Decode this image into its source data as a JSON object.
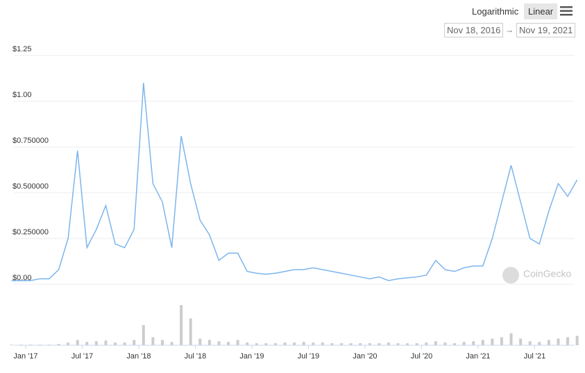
{
  "controls": {
    "scales": [
      "Logarithmic",
      "Linear"
    ],
    "active_scale": 1,
    "range_start": "Nov 18, 2016",
    "range_separator": "→",
    "range_end": "Nov 19, 2021"
  },
  "watermark": "CoinGecko",
  "chart_data": {
    "type": "line",
    "color": "#7cb5ec",
    "grid": true,
    "x": [
      "2016-11",
      "2016-12",
      "2017-01",
      "2017-02",
      "2017-03",
      "2017-04",
      "2017-05",
      "2017-06",
      "2017-07",
      "2017-08",
      "2017-09",
      "2017-10",
      "2017-11",
      "2017-12",
      "2018-01",
      "2018-02",
      "2018-03",
      "2018-04",
      "2018-05",
      "2018-06",
      "2018-07",
      "2018-08",
      "2018-09",
      "2018-10",
      "2018-11",
      "2018-12",
      "2019-01",
      "2019-02",
      "2019-03",
      "2019-04",
      "2019-05",
      "2019-06",
      "2019-07",
      "2019-08",
      "2019-09",
      "2019-10",
      "2019-11",
      "2019-12",
      "2020-01",
      "2020-02",
      "2020-03",
      "2020-04",
      "2020-05",
      "2020-06",
      "2020-07",
      "2020-08",
      "2020-09",
      "2020-10",
      "2020-11",
      "2020-12",
      "2021-01",
      "2021-02",
      "2021-03",
      "2021-04",
      "2021-05",
      "2021-06",
      "2021-07",
      "2021-08",
      "2021-09",
      "2021-10",
      "2021-11"
    ],
    "values": [
      0.02,
      0.02,
      0.02,
      0.03,
      0.03,
      0.08,
      0.25,
      0.73,
      0.2,
      0.3,
      0.43,
      0.22,
      0.2,
      0.3,
      1.1,
      0.55,
      0.45,
      0.2,
      0.81,
      0.55,
      0.35,
      0.27,
      0.13,
      0.17,
      0.17,
      0.07,
      0.06,
      0.055,
      0.06,
      0.07,
      0.08,
      0.08,
      0.09,
      0.08,
      0.07,
      0.06,
      0.05,
      0.04,
      0.03,
      0.04,
      0.02,
      0.03,
      0.035,
      0.04,
      0.05,
      0.13,
      0.08,
      0.07,
      0.09,
      0.1,
      0.1,
      0.25,
      0.45,
      0.65,
      0.45,
      0.25,
      0.22,
      0.4,
      0.55,
      0.48,
      0.57
    ],
    "volume": {
      "color": "#cccccc",
      "values": [
        1,
        1,
        1,
        1,
        1,
        2,
        4,
        8,
        5,
        6,
        7,
        4,
        4,
        8,
        30,
        12,
        8,
        5,
        60,
        40,
        10,
        8,
        6,
        5,
        8,
        4,
        3,
        3,
        3,
        4,
        4,
        5,
        4,
        4,
        3,
        3,
        3,
        3,
        3,
        3,
        4,
        3,
        3,
        3,
        4,
        6,
        4,
        3,
        5,
        6,
        8,
        10,
        12,
        18,
        10,
        6,
        5,
        8,
        10,
        12,
        14
      ]
    },
    "ylim": [
      0,
      1.25
    ],
    "yticks": [
      {
        "value": 0,
        "label": "$0.00"
      },
      {
        "value": 0.25,
        "label": "$0.250000"
      },
      {
        "value": 0.5,
        "label": "$0.500000"
      },
      {
        "value": 0.75,
        "label": "$0.750000"
      },
      {
        "value": 1,
        "label": "$1.00"
      },
      {
        "value": 1.25,
        "label": "$1.25"
      }
    ],
    "xticks": [
      {
        "value": "2017-01",
        "label": "Jan '17"
      },
      {
        "value": "2017-07",
        "label": "Jul '17"
      },
      {
        "value": "2018-01",
        "label": "Jan '18"
      },
      {
        "value": "2018-07",
        "label": "Jul '18"
      },
      {
        "value": "2019-01",
        "label": "Jan '19"
      },
      {
        "value": "2019-07",
        "label": "Jul '19"
      },
      {
        "value": "2020-01",
        "label": "Jan '20"
      },
      {
        "value": "2020-07",
        "label": "Jul '20"
      },
      {
        "value": "2021-01",
        "label": "Jan '21"
      },
      {
        "value": "2021-07",
        "label": "Jul '21"
      }
    ]
  }
}
